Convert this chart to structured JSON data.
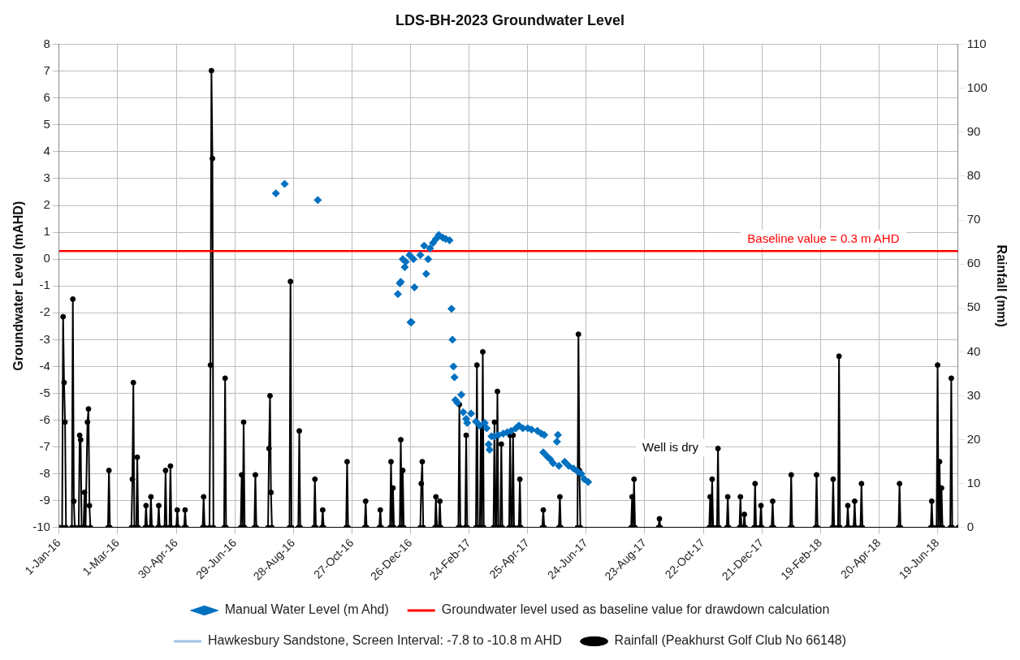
{
  "chart_data": {
    "type": "line",
    "title": "LDS-BH-2023 Groundwater Level",
    "ylabel": "Groundwater Level (mAHD)",
    "y2label": "Rainfall (mm)",
    "xlim": [
      "2016-01-01",
      "2018-07-10"
    ],
    "xticks": [
      {
        "value": "2016-01-01",
        "label": "1-Jan-16"
      },
      {
        "value": "2016-03-01",
        "label": "1-Mar-16"
      },
      {
        "value": "2016-04-30",
        "label": "30-Apr-16"
      },
      {
        "value": "2016-06-29",
        "label": "29-Jun-16"
      },
      {
        "value": "2016-08-28",
        "label": "28-Aug-16"
      },
      {
        "value": "2016-10-27",
        "label": "27-Oct-16"
      },
      {
        "value": "2016-12-26",
        "label": "26-Dec-16"
      },
      {
        "value": "2017-02-24",
        "label": "24-Feb-17"
      },
      {
        "value": "2017-04-25",
        "label": "25-Apr-17"
      },
      {
        "value": "2017-06-24",
        "label": "24-Jun-17"
      },
      {
        "value": "2017-08-23",
        "label": "23-Aug-17"
      },
      {
        "value": "2017-10-22",
        "label": "22-Oct-17"
      },
      {
        "value": "2017-12-21",
        "label": "21-Dec-17"
      },
      {
        "value": "2018-02-19",
        "label": "19-Feb-18"
      },
      {
        "value": "2018-04-20",
        "label": "20-Apr-18"
      },
      {
        "value": "2018-06-19",
        "label": "19-Jun-18"
      }
    ],
    "ylim": [
      -10,
      8
    ],
    "yticks": [
      -10,
      -9,
      -8,
      -7,
      -6,
      -5,
      -4,
      -3,
      -2,
      -1,
      0,
      1,
      2,
      3,
      4,
      5,
      6,
      7,
      8
    ],
    "y2lim": [
      0,
      110
    ],
    "y2ticks": [
      0,
      10,
      20,
      30,
      40,
      50,
      60,
      70,
      80,
      90,
      100,
      110
    ],
    "grid": true,
    "legend": "bottom",
    "annotations": [
      {
        "text": "Baseline value = 0.3 m AHD",
        "x": "2018-02-22",
        "y": 0.3
      },
      "Well is dry"
    ],
    "series": [
      {
        "name": "Manual Water Level (m Ahd)",
        "type": "scatter",
        "color": "#0070c0",
        "marker": "diamond",
        "x": [
          "2016-08-10",
          "2016-08-19",
          "2016-09-22",
          "2016-12-13",
          "2016-12-15",
          "2016-12-16",
          "2016-12-18",
          "2016-12-20",
          "2016-12-21",
          "2016-12-25",
          "2016-12-26",
          "2016-12-27",
          "2016-12-29",
          "2016-12-30",
          "2017-01-05",
          "2017-01-09",
          "2017-01-11",
          "2017-01-13",
          "2017-01-15",
          "2017-01-18",
          "2017-01-21",
          "2017-01-24",
          "2017-01-28",
          "2017-01-31",
          "2017-02-04",
          "2017-02-06",
          "2017-02-07",
          "2017-02-08",
          "2017-02-09",
          "2017-02-10",
          "2017-02-12",
          "2017-02-16",
          "2017-02-18",
          "2017-02-21",
          "2017-02-22",
          "2017-02-26",
          "2017-03-03",
          "2017-03-07",
          "2017-03-12",
          "2017-03-14",
          "2017-03-16",
          "2017-03-17",
          "2017-03-19",
          "2017-03-22",
          "2017-03-26",
          "2017-03-31",
          "2017-04-04",
          "2017-04-08",
          "2017-04-13",
          "2017-04-16",
          "2017-04-20",
          "2017-04-25",
          "2017-04-29",
          "2017-05-05",
          "2017-05-09",
          "2017-05-11",
          "2017-05-12",
          "2017-05-15",
          "2017-05-18",
          "2017-05-21",
          "2017-05-25",
          "2017-05-26",
          "2017-05-27",
          "2017-06-02",
          "2017-06-06",
          "2017-06-11",
          "2017-06-15",
          "2017-06-19",
          "2017-06-22",
          "2017-06-26"
        ],
        "values": [
          2.45,
          2.8,
          2.2,
          -1.3,
          -0.9,
          -0.85,
          0.0,
          -0.3,
          -0.1,
          0.15,
          -2.35,
          -2.35,
          0.0,
          -1.05,
          0.15,
          0.5,
          -0.55,
          0.0,
          0.4,
          0.6,
          0.75,
          0.9,
          0.8,
          0.75,
          0.7,
          -1.85,
          -3.0,
          -4.0,
          -4.4,
          -5.25,
          -5.35,
          -5.05,
          -5.7,
          -5.95,
          -6.1,
          -5.75,
          -6.05,
          -6.2,
          -6.1,
          -6.3,
          -6.9,
          -7.1,
          -6.6,
          -6.6,
          -6.55,
          -6.5,
          -6.45,
          -6.4,
          -6.3,
          -6.2,
          -6.3,
          -6.3,
          -6.35,
          -6.4,
          -6.5,
          -7.2,
          -6.55,
          -7.35,
          -7.45,
          -7.6,
          -6.8,
          -6.55,
          -7.7,
          -7.55,
          -7.7,
          -7.8,
          -7.9,
          -8.0,
          -8.2,
          -8.3
        ]
      },
      {
        "name": "Groundwater level used as baseline value for drawdown calculation",
        "type": "line",
        "color": "#ff0000",
        "marker": "none",
        "x": [
          "2016-01-01",
          "2018-07-10"
        ],
        "values": [
          0.3,
          0.3
        ]
      },
      {
        "name": "Hawkesbury Sandstone, Screen Interval: -7.8 to -10.8 m AHD",
        "type": "line",
        "color": "#9dc3e6",
        "marker": "none"
      },
      {
        "name": "Rainfall (Peakhurst Golf Club No 66148)",
        "type": "line",
        "axis": "y2",
        "color": "#000000",
        "marker": "circle",
        "x": [
          "2016-01-01",
          "2016-01-04",
          "2016-01-05",
          "2016-01-06",
          "2016-01-07",
          "2016-01-08",
          "2016-01-14",
          "2016-01-15",
          "2016-01-16",
          "2016-01-17",
          "2016-01-21",
          "2016-01-22",
          "2016-01-23",
          "2016-01-24",
          "2016-01-26",
          "2016-01-27",
          "2016-01-28",
          "2016-01-30",
          "2016-01-31",
          "2016-02-01",
          "2016-02-02",
          "2016-02-20",
          "2016-02-21",
          "2016-02-22",
          "2016-03-15",
          "2016-03-16",
          "2016-03-17",
          "2016-03-18",
          "2016-03-20",
          "2016-03-21",
          "2016-03-22",
          "2016-03-29",
          "2016-03-30",
          "2016-03-31",
          "2016-04-03",
          "2016-04-04",
          "2016-04-05",
          "2016-04-11",
          "2016-04-12",
          "2016-04-13",
          "2016-04-18",
          "2016-04-19",
          "2016-04-20",
          "2016-04-23",
          "2016-04-24",
          "2016-04-25",
          "2016-04-30",
          "2016-05-01",
          "2016-05-02",
          "2016-05-08",
          "2016-05-09",
          "2016-05-10",
          "2016-05-27",
          "2016-05-28",
          "2016-05-29",
          "2016-06-03",
          "2016-06-04",
          "2016-06-05",
          "2016-06-06",
          "2016-06-07",
          "2016-06-18",
          "2016-06-19",
          "2016-06-20",
          "2016-07-05",
          "2016-07-06",
          "2016-07-07",
          "2016-07-08",
          "2016-07-09",
          "2016-07-19",
          "2016-07-20",
          "2016-07-21",
          "2016-08-02",
          "2016-08-03",
          "2016-08-04",
          "2016-08-05",
          "2016-08-06",
          "2016-08-24",
          "2016-08-25",
          "2016-08-26",
          "2016-09-02",
          "2016-09-03",
          "2016-09-04",
          "2016-09-18",
          "2016-09-19",
          "2016-09-20",
          "2016-09-26",
          "2016-09-27",
          "2016-09-28",
          "2016-10-21",
          "2016-10-22",
          "2016-10-23",
          "2016-11-09",
          "2016-11-10",
          "2016-11-11",
          "2016-11-24",
          "2016-11-25",
          "2016-11-26",
          "2016-12-05",
          "2016-12-06",
          "2016-12-07",
          "2016-12-08",
          "2016-12-09",
          "2016-12-15",
          "2016-12-16",
          "2016-12-17",
          "2016-12-18",
          "2016-12-19",
          "2017-01-05",
          "2017-01-06",
          "2017-01-07",
          "2017-01-08",
          "2017-01-20",
          "2017-01-21",
          "2017-01-22",
          "2017-01-24",
          "2017-01-25",
          "2017-01-26",
          "2017-02-13",
          "2017-02-14",
          "2017-02-15",
          "2017-02-20",
          "2017-02-21",
          "2017-02-22",
          "2017-03-03",
          "2017-03-04",
          "2017-03-05",
          "2017-03-07",
          "2017-03-08",
          "2017-03-09",
          "2017-03-10",
          "2017-03-11",
          "2017-03-21",
          "2017-03-22",
          "2017-03-23",
          "2017-03-24",
          "2017-03-25",
          "2017-03-26",
          "2017-03-28",
          "2017-03-29",
          "2017-03-30",
          "2017-04-06",
          "2017-04-07",
          "2017-04-08",
          "2017-04-09",
          "2017-04-10",
          "2017-04-11",
          "2017-04-16",
          "2017-04-17",
          "2017-04-18",
          "2017-05-10",
          "2017-05-11",
          "2017-05-12",
          "2017-05-27",
          "2017-05-28",
          "2017-05-29",
          "2017-06-15",
          "2017-06-16",
          "2017-06-17",
          "2017-06-18",
          "2017-08-09",
          "2017-08-10",
          "2017-08-11",
          "2017-08-12",
          "2017-08-13",
          "2017-09-06",
          "2017-09-07",
          "2017-09-08",
          "2017-10-28",
          "2017-10-29",
          "2017-10-30",
          "2017-10-31",
          "2017-11-01",
          "2017-11-05",
          "2017-11-06",
          "2017-11-07",
          "2017-11-15",
          "2017-11-16",
          "2017-11-17",
          "2017-11-28",
          "2017-11-29",
          "2017-11-30",
          "2017-12-02",
          "2017-12-03",
          "2017-12-04",
          "2017-12-13",
          "2017-12-14",
          "2017-12-15",
          "2017-12-19",
          "2017-12-20",
          "2017-12-21",
          "2017-12-31",
          "2018-01-01",
          "2018-01-02",
          "2018-01-19",
          "2018-01-20",
          "2018-01-21",
          "2018-02-14",
          "2018-02-15",
          "2018-02-16",
          "2018-03-03",
          "2018-03-04",
          "2018-03-05",
          "2018-03-09",
          "2018-03-10",
          "2018-03-11",
          "2018-03-18",
          "2018-03-19",
          "2018-03-20",
          "2018-03-25",
          "2018-03-26",
          "2018-03-27",
          "2018-04-01",
          "2018-04-02",
          "2018-04-03",
          "2018-05-10",
          "2018-05-11",
          "2018-05-12",
          "2018-06-12",
          "2018-06-13",
          "2018-06-14",
          "2018-06-18",
          "2018-06-19",
          "2018-06-20",
          "2018-06-21",
          "2018-06-22",
          "2018-06-23",
          "2018-06-24",
          "2018-07-02",
          "2018-07-03",
          "2018-07-04",
          "2018-07-10"
        ],
        "values": [
          0,
          0,
          48,
          33,
          24,
          0,
          0,
          52,
          6,
          0,
          0,
          21,
          20,
          0,
          0,
          8,
          0,
          24,
          27,
          5,
          0,
          0,
          13,
          0,
          0,
          11,
          33,
          0,
          0,
          16,
          0,
          0,
          5,
          0,
          0,
          7,
          0,
          0,
          5,
          0,
          0,
          13,
          0,
          0,
          14,
          0,
          0,
          4,
          0,
          0,
          4,
          0,
          0,
          7,
          0,
          0,
          37,
          104,
          84,
          0,
          0,
          34,
          0,
          0,
          12,
          0,
          24,
          0,
          0,
          12,
          0,
          0,
          18,
          30,
          8,
          0,
          0,
          56,
          0,
          0,
          22,
          0,
          0,
          11,
          0,
          0,
          4,
          0,
          0,
          15,
          0,
          0,
          6,
          0,
          0,
          4,
          0,
          0,
          15,
          0,
          9,
          0,
          0,
          20,
          0,
          13,
          0,
          0,
          10,
          15,
          0,
          0,
          7,
          0,
          0,
          6,
          0,
          0,
          28,
          0,
          0,
          21,
          0,
          0,
          37,
          0,
          0,
          23,
          0,
          40,
          0,
          0,
          24,
          0,
          0,
          31,
          0,
          0,
          19,
          0,
          0,
          21,
          0,
          0,
          21,
          0,
          0,
          11,
          0,
          0,
          4,
          0,
          0,
          7,
          0,
          0,
          44,
          13,
          0,
          0,
          7,
          0,
          11,
          0,
          0,
          2,
          0,
          0,
          7,
          0,
          11,
          0,
          0,
          18,
          0,
          0,
          7,
          0,
          0,
          7,
          0,
          0,
          3,
          0,
          0,
          10,
          0,
          0,
          5,
          0,
          0,
          6,
          0,
          0,
          12,
          0,
          0,
          12,
          0,
          0,
          11,
          0,
          0,
          39,
          0,
          0,
          5,
          0,
          0,
          6,
          0,
          0,
          10,
          0,
          0,
          10,
          0,
          0,
          6,
          0,
          0,
          37,
          0,
          15,
          0,
          9,
          0,
          0,
          34,
          0,
          0
        ]
      }
    ]
  }
}
